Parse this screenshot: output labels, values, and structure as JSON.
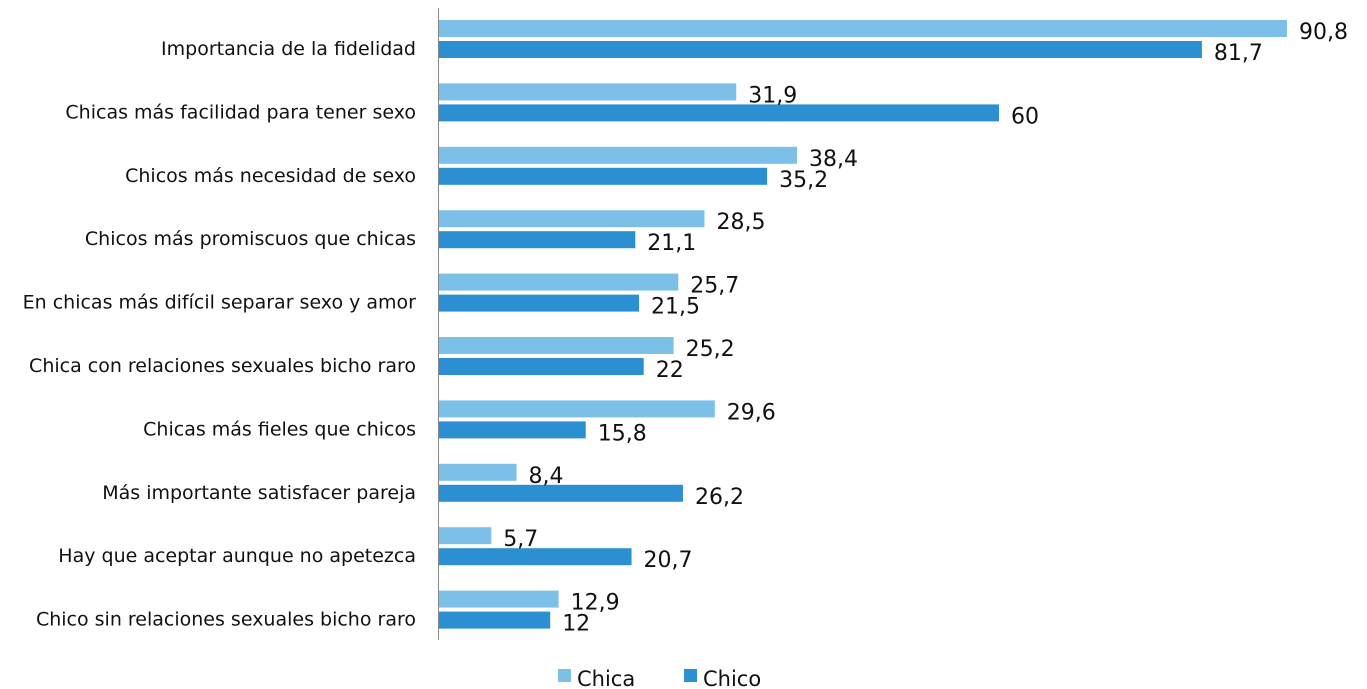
{
  "chart_data": {
    "type": "bar",
    "orientation": "horizontal",
    "categories": [
      "Importancia de la fidelidad",
      "Chicas más facilidad para tener sexo",
      "Chicos más necesidad de sexo",
      "Chicos más promiscuos que chicas",
      "En chicas más difícil separar sexo y amor",
      "Chica con relaciones sexuales bicho raro",
      "Chicas más fieles que chicos",
      "Más importante satisfacer pareja",
      "Hay que aceptar aunque no apetezca",
      "Chico sin relaciones sexuales bicho raro"
    ],
    "series": [
      {
        "name": "Chica",
        "color": "#7cc0e8",
        "values": [
          90.8,
          31.9,
          38.4,
          28.5,
          25.7,
          25.2,
          29.6,
          8.4,
          5.7,
          12.9
        ],
        "labels": [
          "90,8",
          "31,9",
          "38,4",
          "28,5",
          "25,7",
          "25,2",
          "29,6",
          "8,4",
          "5,7",
          "12,9"
        ]
      },
      {
        "name": "Chico",
        "color": "#2b8fd1",
        "values": [
          81.7,
          60,
          35.2,
          21.1,
          21.5,
          22,
          15.8,
          26.2,
          20.7,
          12
        ],
        "labels": [
          "81,7",
          "60",
          "35,2",
          "21,1",
          "21,5",
          "22",
          "15,8",
          "26,2",
          "20,7",
          "12"
        ]
      }
    ],
    "xlim": [
      0,
      100
    ],
    "grid": false,
    "legend_position": "bottom"
  }
}
